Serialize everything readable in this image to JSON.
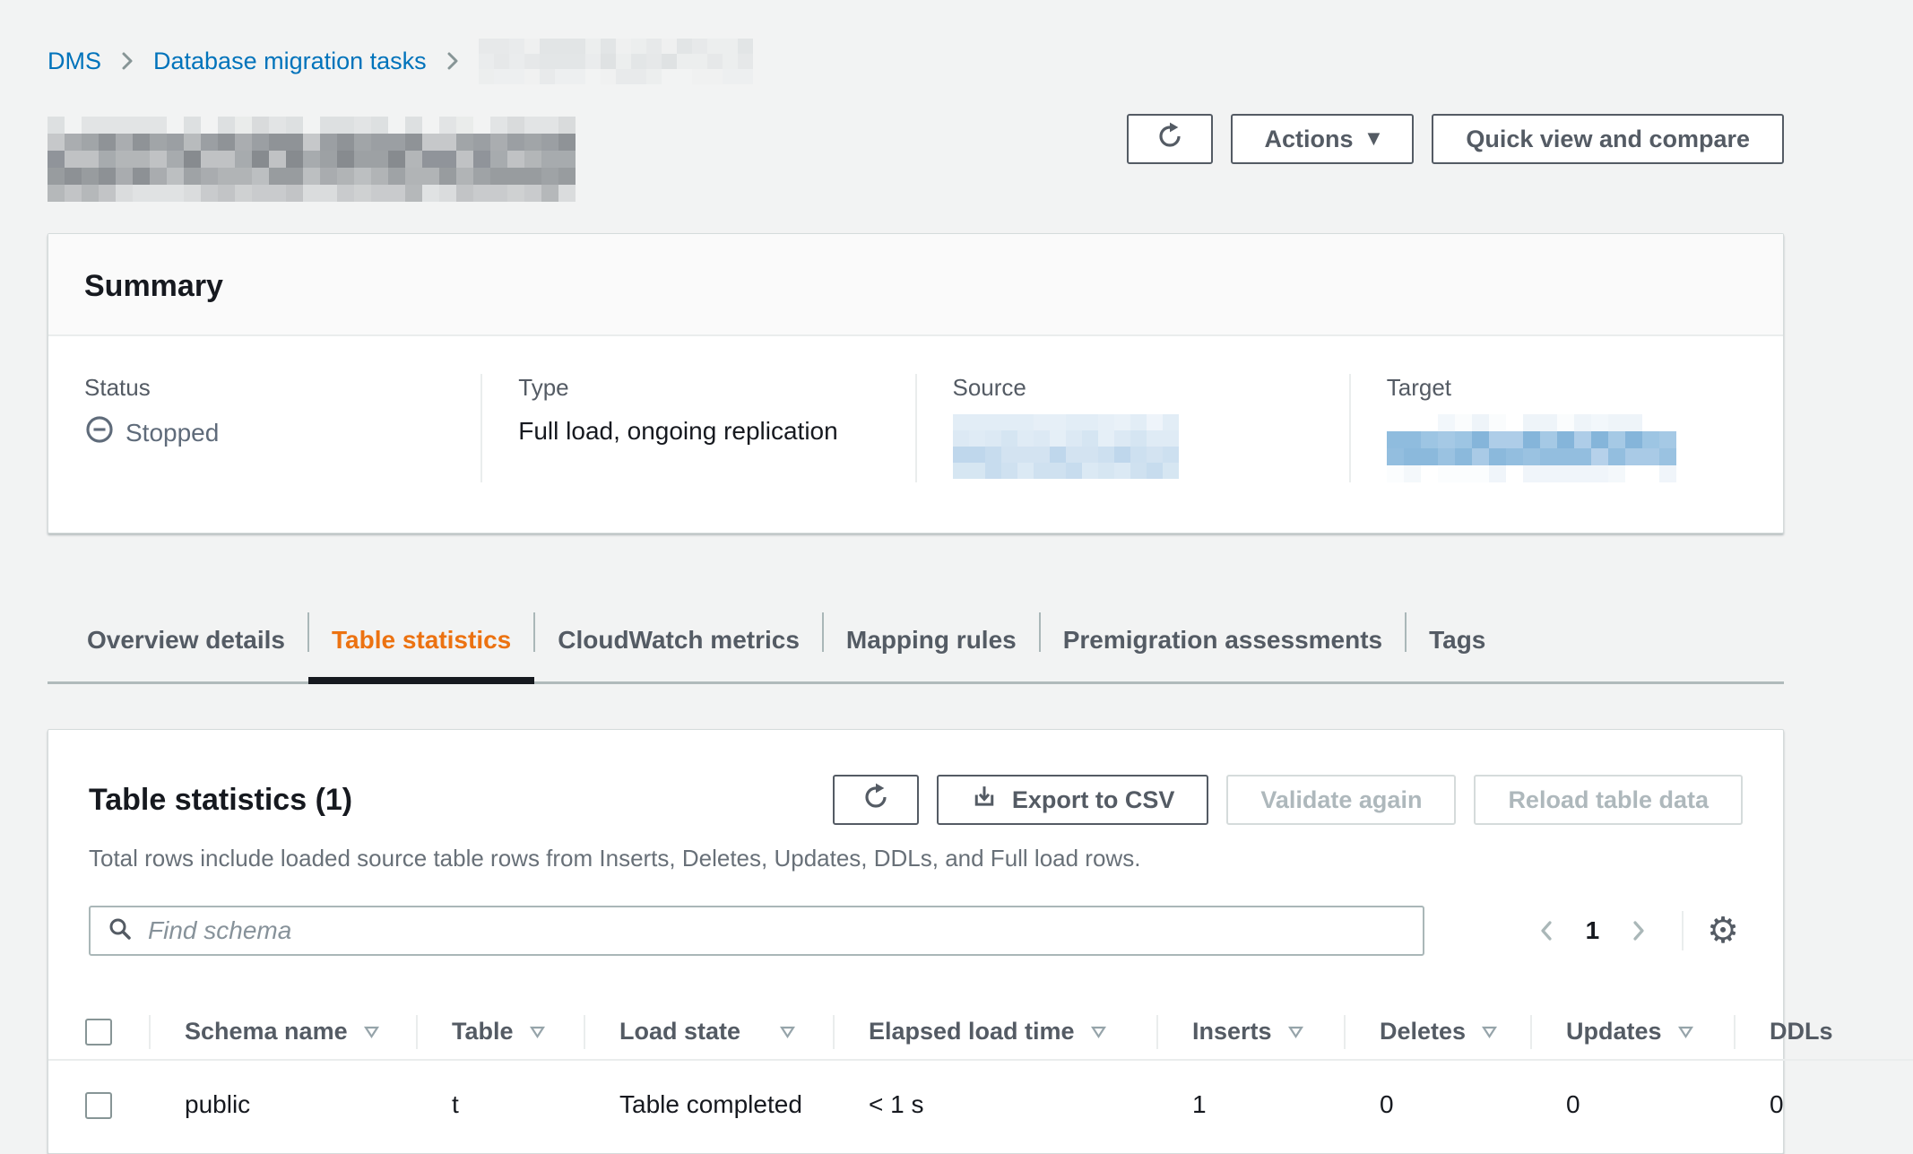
{
  "colors": {
    "link": "#0073bb",
    "accent_orange": "#ec7211",
    "text": "#16191f",
    "secondary_text": "#545b64",
    "disabled_text": "#aab7b8",
    "page_background": "#f2f3f3"
  },
  "breadcrumb": {
    "items": [
      "DMS",
      "Database migration tasks"
    ]
  },
  "toolbar": {
    "actions_label": "Actions",
    "quick_view_label": "Quick view and compare"
  },
  "summary": {
    "title": "Summary",
    "status": {
      "label": "Status",
      "value": "Stopped"
    },
    "type": {
      "label": "Type",
      "value": "Full load, ongoing replication"
    },
    "source": {
      "label": "Source"
    },
    "target": {
      "label": "Target"
    }
  },
  "tabs": {
    "items": [
      "Overview details",
      "Table statistics",
      "CloudWatch metrics",
      "Mapping rules",
      "Premigration assessments",
      "Tags"
    ],
    "active": "Table statistics"
  },
  "table_panel": {
    "title": "Table statistics (1)",
    "description": "Total rows include loaded source table rows from Inserts, Deletes, Updates, DDLs, and Full load rows.",
    "export_label": "Export to CSV",
    "validate_label": "Validate again",
    "reload_label": "Reload table data",
    "search_placeholder": "Find schema",
    "pagination": {
      "current_page": "1"
    },
    "columns": [
      "Schema name",
      "Table",
      "Load state",
      "Elapsed load time",
      "Inserts",
      "Deletes",
      "Updates",
      "DDLs"
    ],
    "rows": [
      {
        "schema": "public",
        "table": "t",
        "load_state": "Table completed",
        "elapsed": "< 1 s",
        "inserts": "1",
        "deletes": "0",
        "updates": "0",
        "ddls": "0"
      }
    ]
  }
}
